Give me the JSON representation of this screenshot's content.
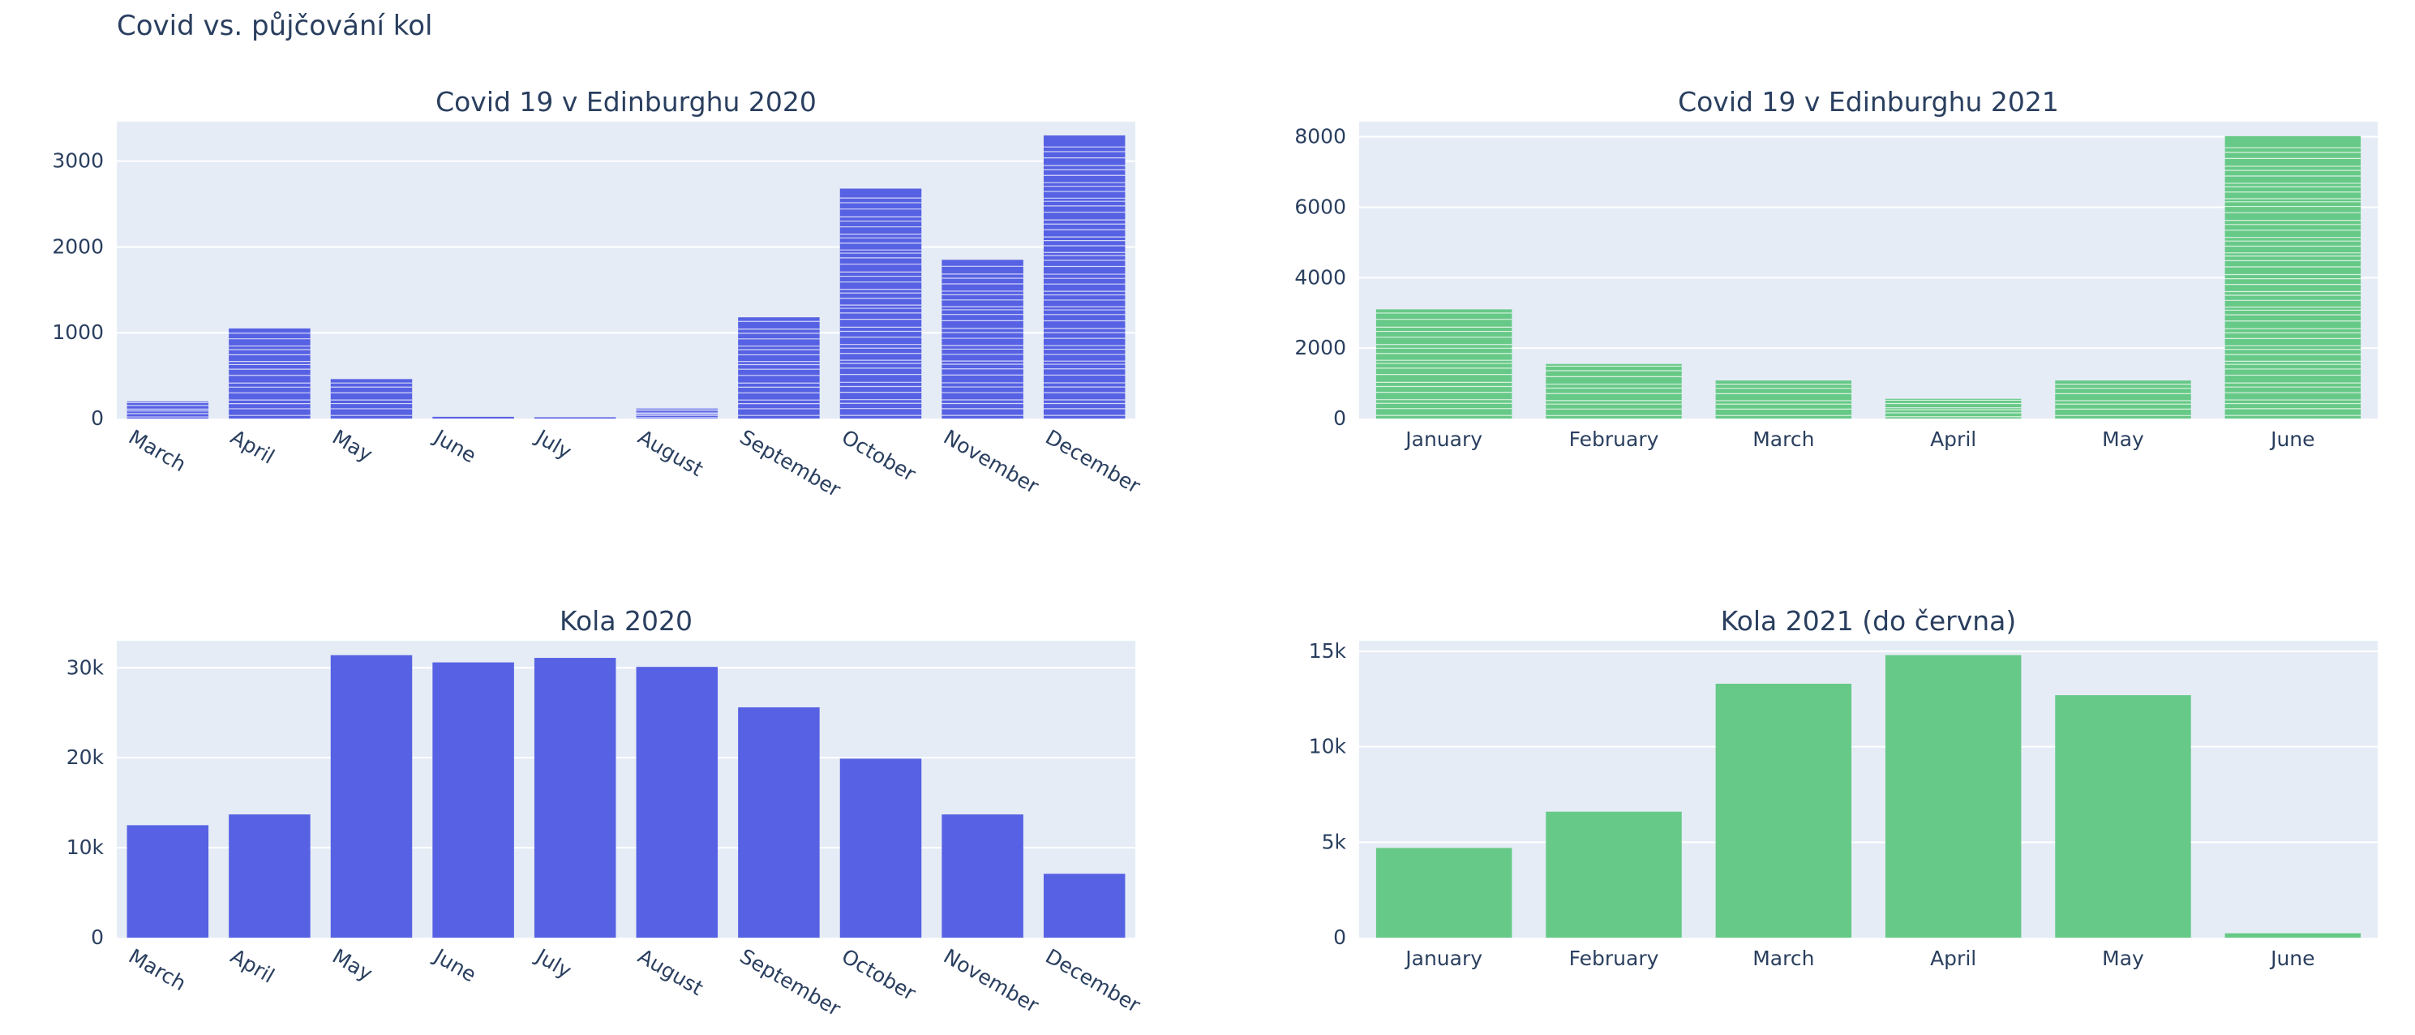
{
  "page": {
    "title": "Covid vs. půjčování kol"
  },
  "chart_data": [
    {
      "id": "covid2020",
      "type": "bar",
      "title": "Covid 19 v Edinburghu 2020",
      "categories": [
        "March",
        "April",
        "May",
        "June",
        "July",
        "August",
        "September",
        "October",
        "November",
        "December"
      ],
      "values": [
        200,
        1050,
        460,
        20,
        15,
        120,
        1180,
        2680,
        1850,
        3300
      ],
      "yticks": [
        0,
        1000,
        2000,
        3000
      ],
      "ytick_labels": [
        "0",
        "1000",
        "2000",
        "3000"
      ],
      "ylim": [
        0,
        3460
      ],
      "color": "#5661e3",
      "stacked_segments": true,
      "rotated_x_labels": true,
      "xlabel": "",
      "ylabel": ""
    },
    {
      "id": "covid2021",
      "type": "bar",
      "title": "Covid 19 v Edinburghu 2021",
      "categories": [
        "January",
        "February",
        "March",
        "April",
        "May",
        "June"
      ],
      "values": [
        3100,
        1550,
        1080,
        560,
        1080,
        8020
      ],
      "yticks": [
        0,
        2000,
        4000,
        6000,
        8000
      ],
      "ytick_labels": [
        "0",
        "2000",
        "4000",
        "6000",
        "8000"
      ],
      "ylim": [
        0,
        8430
      ],
      "color": "#67c987",
      "stacked_segments": true,
      "rotated_x_labels": false,
      "xlabel": "",
      "ylabel": ""
    },
    {
      "id": "kola2020",
      "type": "bar",
      "title": "Kola 2020",
      "categories": [
        "March",
        "April",
        "May",
        "June",
        "July",
        "August",
        "September",
        "October",
        "November",
        "December"
      ],
      "values": [
        12500,
        13700,
        31400,
        30600,
        31100,
        30100,
        25600,
        19900,
        13700,
        7100
      ],
      "yticks": [
        0,
        10000,
        20000,
        30000
      ],
      "ytick_labels": [
        "0",
        "10k",
        "20k",
        "30k"
      ],
      "ylim": [
        0,
        33000
      ],
      "color": "#5661e3",
      "stacked_segments": false,
      "rotated_x_labels": true,
      "xlabel": "",
      "ylabel": ""
    },
    {
      "id": "kola2021",
      "type": "bar",
      "title": "Kola 2021 (do června)",
      "categories": [
        "January",
        "February",
        "March",
        "April",
        "May",
        "June"
      ],
      "values": [
        4700,
        6600,
        13300,
        14800,
        12700,
        230
      ],
      "yticks": [
        0,
        5000,
        10000,
        15000
      ],
      "ytick_labels": [
        "0",
        "5k",
        "10k",
        "15k"
      ],
      "ylim": [
        0,
        15550
      ],
      "color": "#67c987",
      "stacked_segments": false,
      "rotated_x_labels": false,
      "xlabel": "",
      "ylabel": ""
    }
  ]
}
